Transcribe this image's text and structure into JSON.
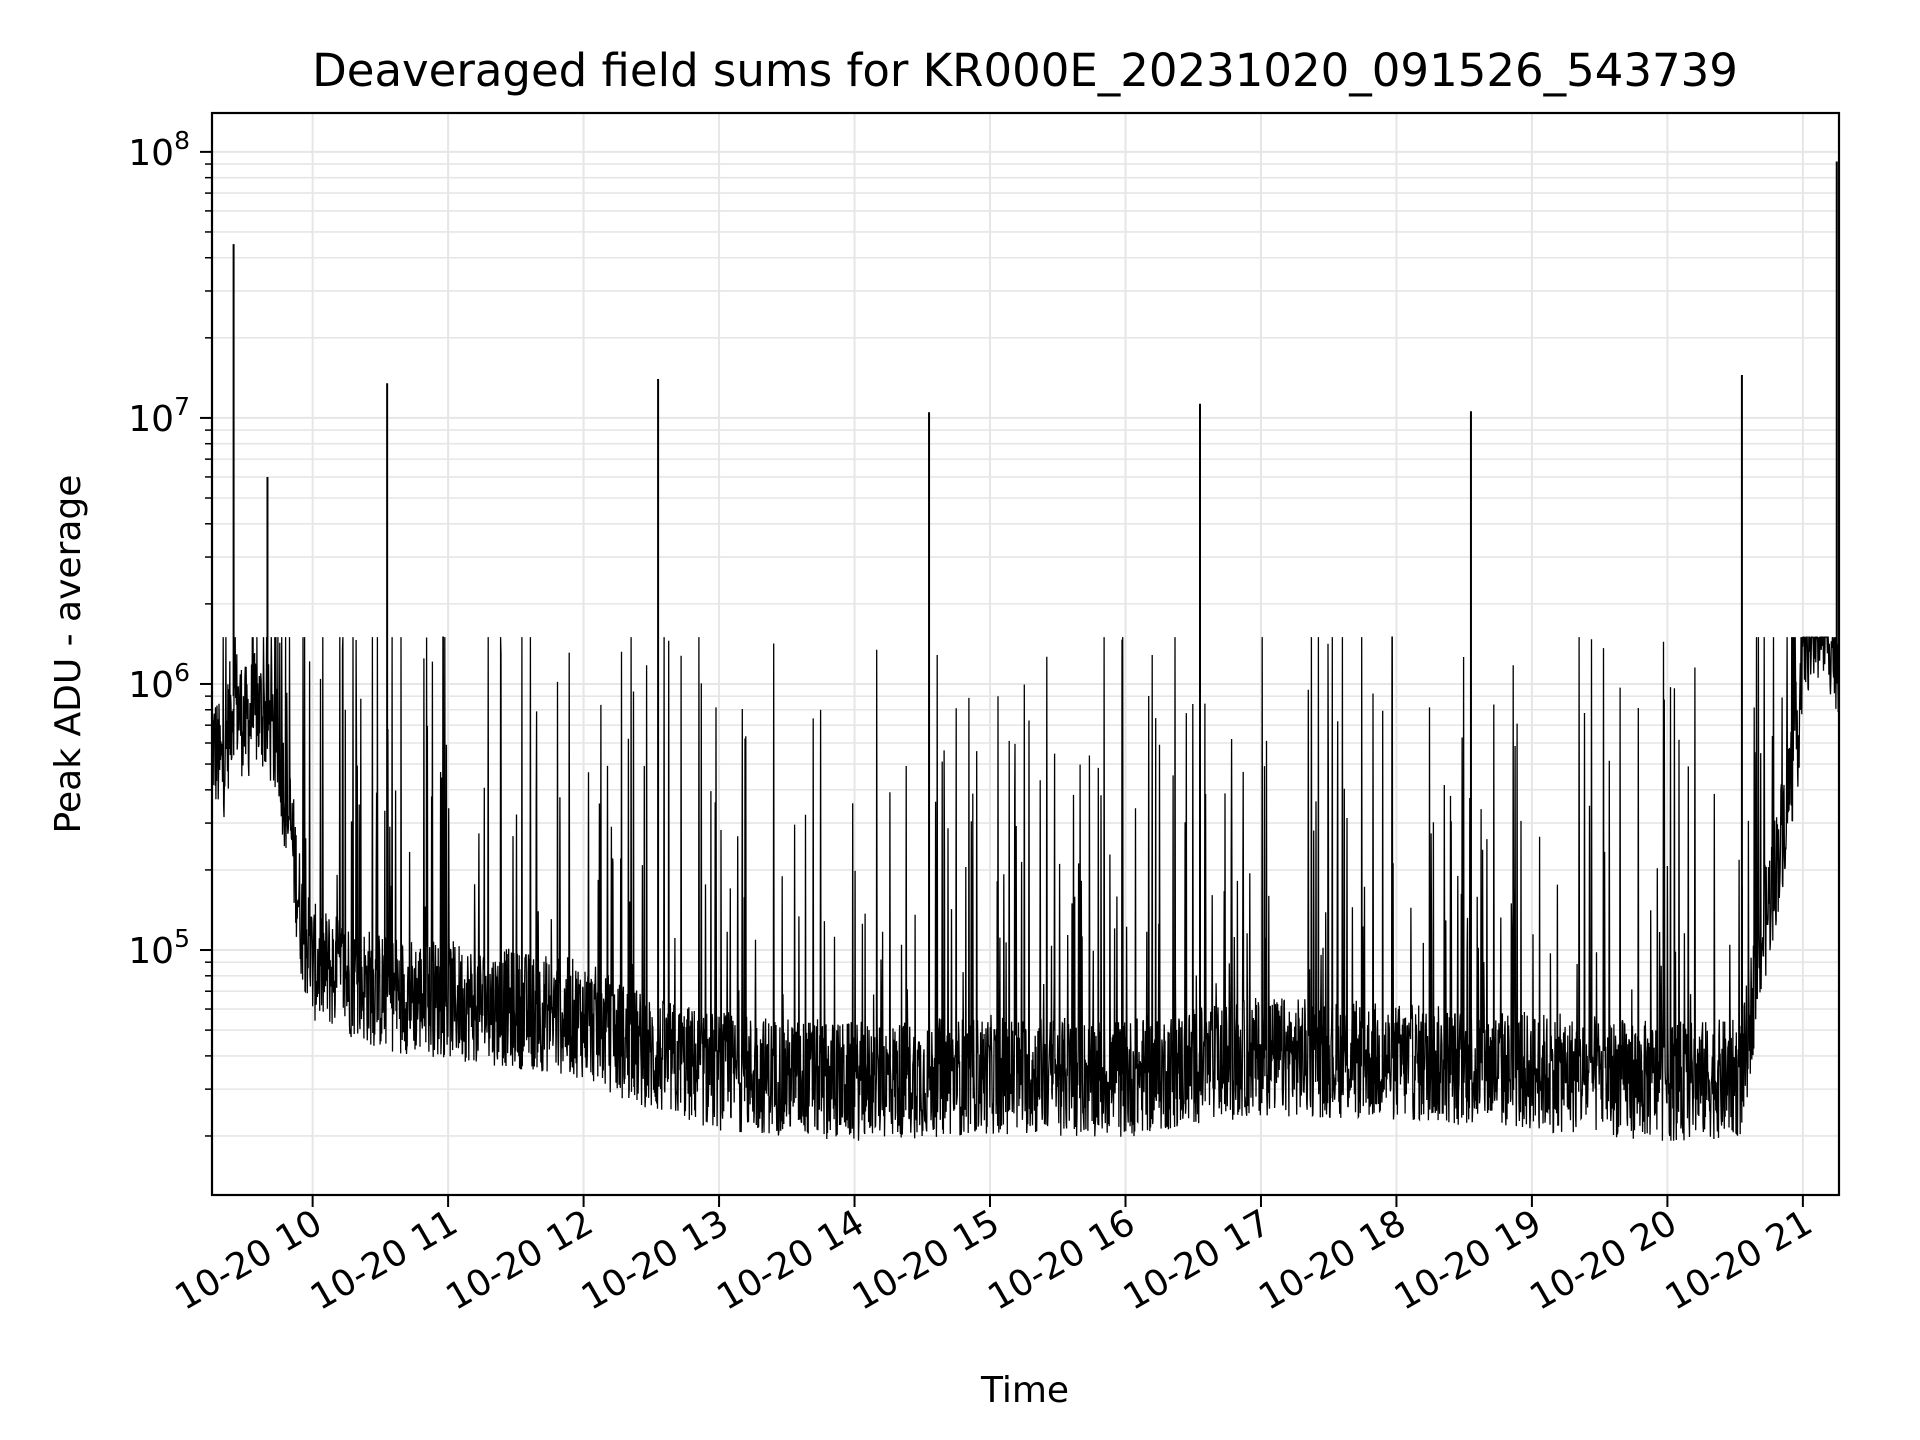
{
  "chart_data": {
    "type": "line",
    "title": "Deaveraged field sums for KR000E_20231020_091526_543739",
    "xlabel": "Time",
    "ylabel": "Peak ADU - average",
    "y_scale": "log",
    "ylim": [
      12000,
      140000000
    ],
    "xlim": [
      "2023-10-20T09:15:26",
      "2023-10-20T21:16:00"
    ],
    "grid": true,
    "line_color": "#000000",
    "grid_color": "#e6e6e6",
    "x_ticks": [
      {
        "t": "2023-10-20T10:00",
        "label": "10-20 10"
      },
      {
        "t": "2023-10-20T11:00",
        "label": "10-20 11"
      },
      {
        "t": "2023-10-20T12:00",
        "label": "10-20 12"
      },
      {
        "t": "2023-10-20T13:00",
        "label": "10-20 13"
      },
      {
        "t": "2023-10-20T14:00",
        "label": "10-20 14"
      },
      {
        "t": "2023-10-20T15:00",
        "label": "10-20 15"
      },
      {
        "t": "2023-10-20T16:00",
        "label": "10-20 16"
      },
      {
        "t": "2023-10-20T17:00",
        "label": "10-20 17"
      },
      {
        "t": "2023-10-20T18:00",
        "label": "10-20 18"
      },
      {
        "t": "2023-10-20T19:00",
        "label": "10-20 19"
      },
      {
        "t": "2023-10-20T20:00",
        "label": "10-20 20"
      },
      {
        "t": "2023-10-20T21:00",
        "label": "10-20 21"
      }
    ],
    "y_ticks": [
      {
        "value": 100000,
        "base": "10",
        "exp": "5"
      },
      {
        "value": 1000000,
        "base": "10",
        "exp": "6"
      },
      {
        "value": 10000000,
        "base": "10",
        "exp": "7"
      },
      {
        "value": 100000000,
        "base": "10",
        "exp": "8"
      }
    ],
    "series": [
      {
        "values_sampled": [
          [
            "2023-10-20T09:15:26",
            600000
          ],
          [
            "2023-10-20T09:20",
            480000
          ],
          [
            "2023-10-20T09:25",
            900000
          ],
          [
            "2023-10-20T09:30",
            700000
          ],
          [
            "2023-10-20T09:35",
            800000
          ],
          [
            "2023-10-20T09:40",
            750000
          ],
          [
            "2023-10-20T09:45",
            550000
          ],
          [
            "2023-10-20T09:50",
            300000
          ],
          [
            "2023-10-20T09:55",
            130000
          ],
          [
            "2023-10-20T10:00",
            90000
          ],
          [
            "2023-10-20T10:30",
            70000
          ],
          [
            "2023-10-20T11:00",
            65000
          ],
          [
            "2023-10-20T11:30",
            60000
          ],
          [
            "2023-10-20T12:00",
            55000
          ],
          [
            "2023-10-20T12:30",
            40000
          ],
          [
            "2023-10-20T13:00",
            35000
          ],
          [
            "2023-10-20T14:00",
            32000
          ],
          [
            "2023-10-20T15:00",
            34000
          ],
          [
            "2023-10-20T16:00",
            33000
          ],
          [
            "2023-10-20T17:00",
            40000
          ],
          [
            "2023-10-20T18:00",
            38000
          ],
          [
            "2023-10-20T19:00",
            35000
          ],
          [
            "2023-10-20T20:00",
            32000
          ],
          [
            "2023-10-20T20:33",
            33000
          ],
          [
            "2023-10-20T20:40",
            90000
          ],
          [
            "2023-10-20T20:50",
            250000
          ],
          [
            "2023-10-20T20:58",
            700000
          ],
          [
            "2023-10-20T21:00",
            1500000
          ],
          [
            "2023-10-20T21:10",
            1700000
          ],
          [
            "2023-10-20T21:15",
            1300000
          ]
        ],
        "spikes": [
          [
            "2023-10-20T09:25",
            45000000
          ],
          [
            "2023-10-20T09:40",
            6000000
          ],
          [
            "2023-10-20T10:33",
            13500000
          ],
          [
            "2023-10-20T12:33",
            14000000
          ],
          [
            "2023-10-20T14:33",
            10500000
          ],
          [
            "2023-10-20T16:33",
            11300000
          ],
          [
            "2023-10-20T18:33",
            10600000
          ],
          [
            "2023-10-20T20:33",
            14500000
          ],
          [
            "2023-10-20T21:15",
            92000000
          ]
        ],
        "minimum": 17000,
        "maximum": 92000000
      }
    ]
  }
}
